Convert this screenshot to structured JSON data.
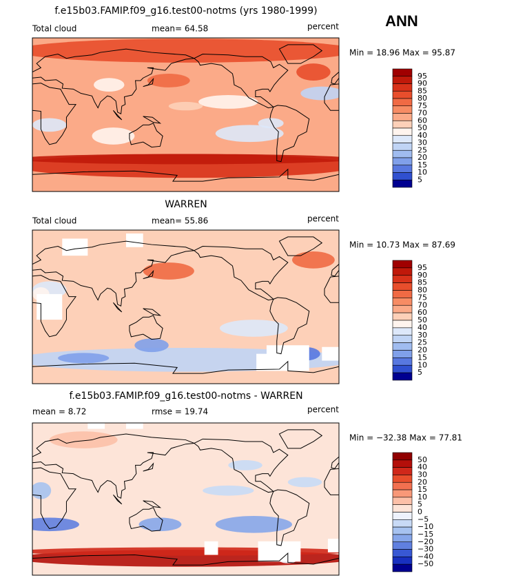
{
  "season": "ANN",
  "panels": [
    {
      "title": "f.e15b03.FAMIP.f09_g16.test00-notms (yrs 1980-1999)",
      "left": "Total cloud",
      "center": "mean=  64.58",
      "right": "percent",
      "range": "Min =  18.96 Max =  95.87",
      "colorbar": [
        "95",
        "90",
        "85",
        "80",
        "75",
        "70",
        "60",
        "50",
        "40",
        "30",
        "25",
        "20",
        "15",
        "10",
        "5"
      ]
    },
    {
      "title": "WARREN",
      "left": "Total cloud",
      "center": "mean=  55.86",
      "right": "percent",
      "range": "Min =  10.73 Max =  87.69",
      "colorbar": [
        "95",
        "90",
        "85",
        "80",
        "75",
        "70",
        "60",
        "50",
        "40",
        "30",
        "25",
        "20",
        "15",
        "10",
        "5"
      ]
    },
    {
      "title": "f.e15b03.FAMIP.f09_g16.test00-notms - WARREN",
      "left": "mean =   8.72",
      "center": "rmse =   19.74",
      "right": "percent",
      "range": "Min = −32.38 Max =  77.81",
      "colorbar": [
        "50",
        "40",
        "30",
        "20",
        "15",
        "10",
        "5",
        "0",
        "−5",
        "−10",
        "−15",
        "−20",
        "−30",
        "−40",
        "−50"
      ]
    }
  ]
}
